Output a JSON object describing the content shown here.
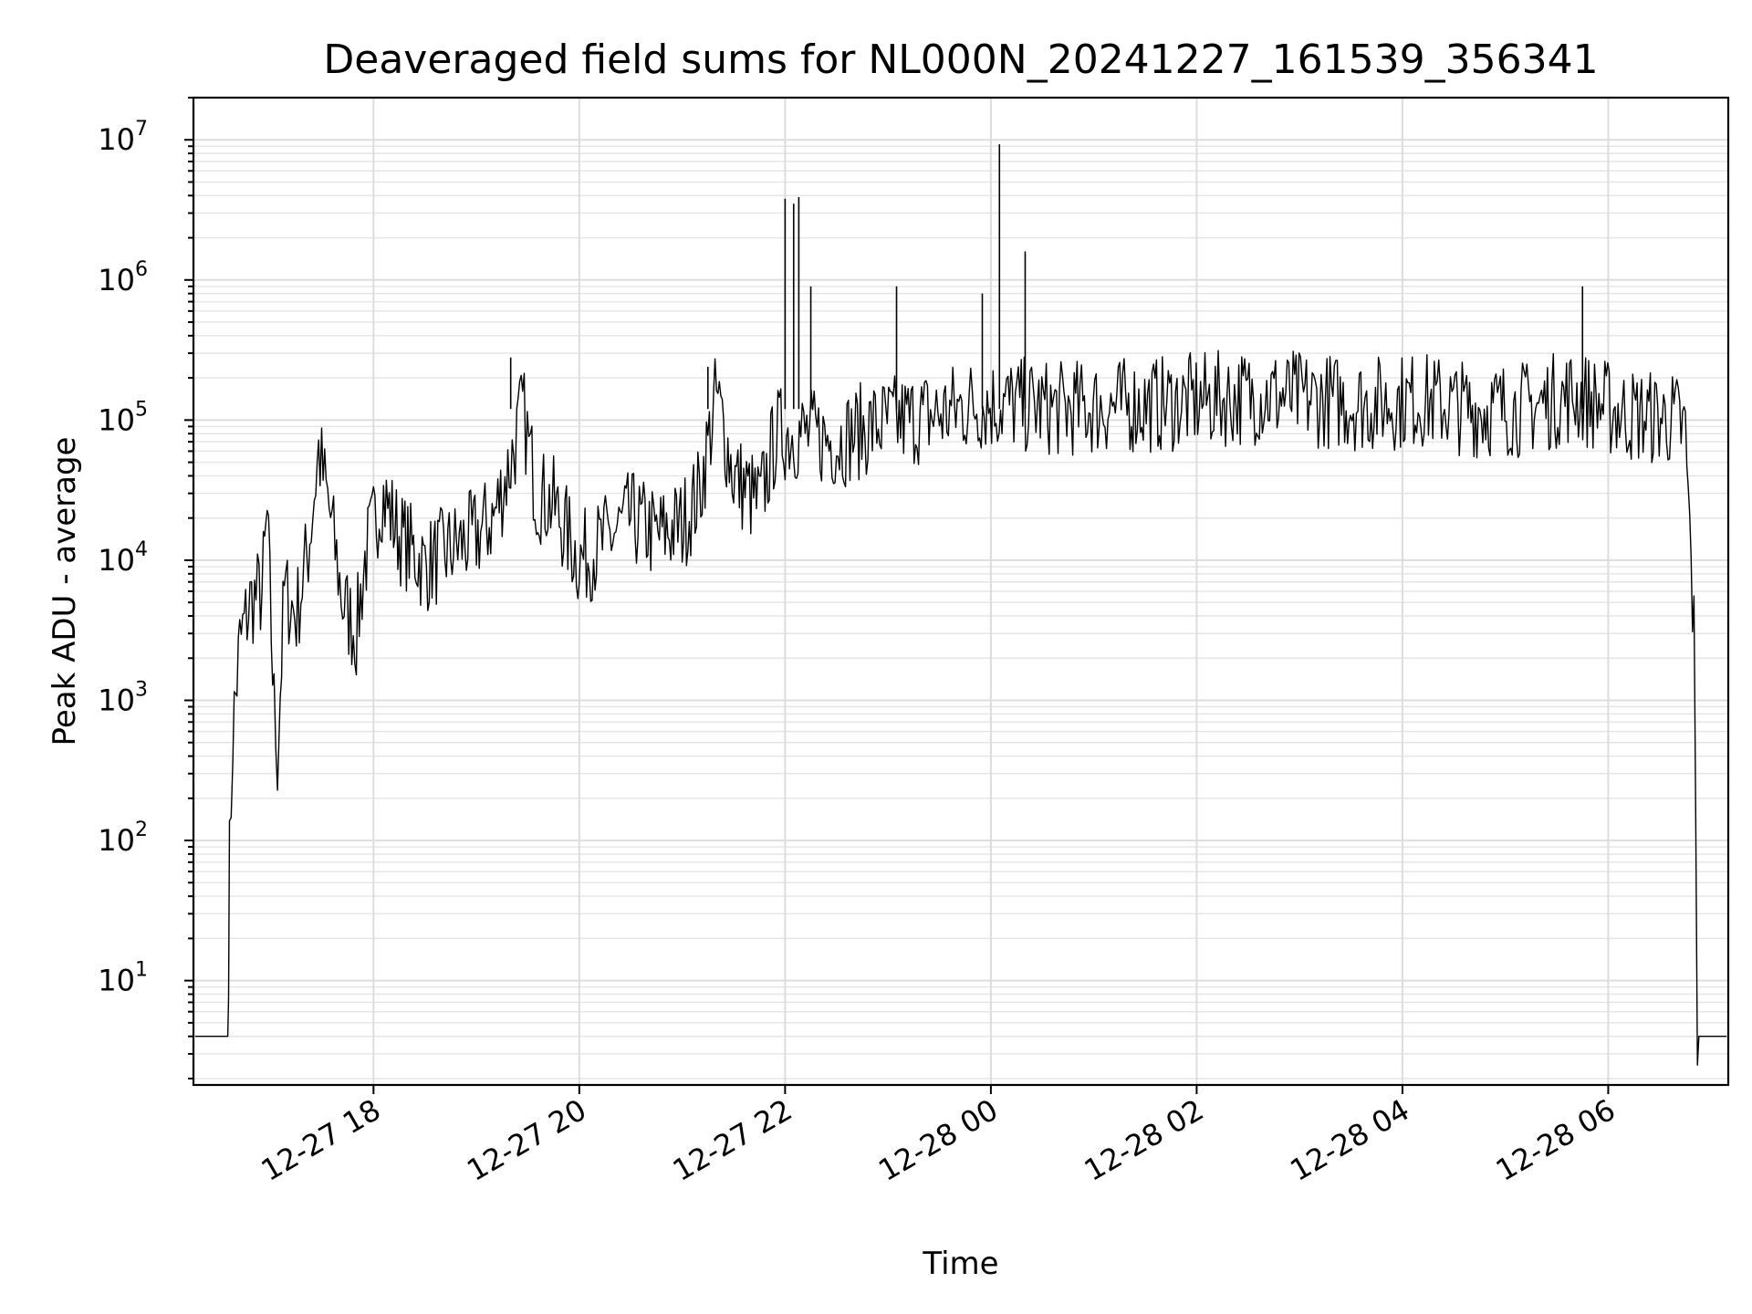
{
  "chart_data": {
    "type": "line",
    "title": "Deaveraged field sums for NL000N_20241227_161539_356341",
    "xlabel": "Time",
    "ylabel": "Peak ADU - average",
    "yscale": "log",
    "ylim": [
      1.8,
      20000000
    ],
    "xlim": [
      "2024-12-27 16:15",
      "2024-12-28 07:10"
    ],
    "grid": true,
    "x_ticks": [
      "12-27 18",
      "12-27 20",
      "12-27 22",
      "12-28 00",
      "12-28 02",
      "12-28 04",
      "12-28 06"
    ],
    "y_ticks": [
      {
        "base": "10",
        "exp": "1"
      },
      {
        "base": "10",
        "exp": "2"
      },
      {
        "base": "10",
        "exp": "3"
      },
      {
        "base": "10",
        "exp": "4"
      },
      {
        "base": "10",
        "exp": "5"
      },
      {
        "base": "10",
        "exp": "6"
      },
      {
        "base": "10",
        "exp": "7"
      }
    ],
    "series": [
      {
        "color": "#000000",
        "points": [
          [
            "2024-12-27 16:16",
            4
          ],
          [
            "2024-12-27 16:35",
            4
          ],
          [
            "2024-12-27 16:36",
            70
          ],
          [
            "2024-12-27 16:38",
            600
          ],
          [
            "2024-12-27 16:42",
            2500
          ],
          [
            "2024-12-27 16:48",
            5000
          ],
          [
            "2024-12-27 16:55",
            6000
          ],
          [
            "2024-12-27 16:58",
            20000
          ],
          [
            "2024-12-27 17:02",
            900
          ],
          [
            "2024-12-27 17:04",
            400
          ],
          [
            "2024-12-27 17:08",
            6000
          ],
          [
            "2024-12-27 17:15",
            4000
          ],
          [
            "2024-12-27 17:22",
            12000
          ],
          [
            "2024-12-27 17:28",
            60000
          ],
          [
            "2024-12-27 17:35",
            20000
          ],
          [
            "2024-12-27 17:42",
            5000
          ],
          [
            "2024-12-27 17:50",
            3000
          ],
          [
            "2024-12-27 17:55",
            10000
          ],
          [
            "2024-12-27 18:05",
            30000
          ],
          [
            "2024-12-27 18:15",
            15000
          ],
          [
            "2024-12-27 18:30",
            9000
          ],
          [
            "2024-12-27 18:45",
            12000
          ],
          [
            "2024-12-27 19:00",
            15000
          ],
          [
            "2024-12-27 19:10",
            20000
          ],
          [
            "2024-12-27 19:20",
            50000
          ],
          [
            "2024-12-27 19:27",
            120000
          ],
          [
            "2024-12-27 19:35",
            30000
          ],
          [
            "2024-12-27 19:45",
            25000
          ],
          [
            "2024-12-27 20:00",
            10000
          ],
          [
            "2024-12-27 20:10",
            12000
          ],
          [
            "2024-12-27 20:30",
            20000
          ],
          [
            "2024-12-27 20:45",
            15000
          ],
          [
            "2024-12-27 21:00",
            18000
          ],
          [
            "2024-12-27 21:10",
            30000
          ],
          [
            "2024-12-27 21:20",
            150000
          ],
          [
            "2024-12-27 21:30",
            40000
          ],
          [
            "2024-12-27 21:45",
            25000
          ],
          [
            "2024-12-27 21:55",
            80000
          ],
          [
            "2024-12-27 22:10",
            80000
          ],
          [
            "2024-12-27 22:30",
            70000
          ],
          [
            "2024-12-27 22:50",
            90000
          ],
          [
            "2024-12-27 23:10",
            100000
          ],
          [
            "2024-12-27 23:30",
            110000
          ],
          [
            "2024-12-27 23:50",
            130000
          ],
          [
            "2024-12-28 00:10",
            130000
          ],
          [
            "2024-12-28 00:40",
            120000
          ],
          [
            "2024-12-28 01:10",
            125000
          ],
          [
            "2024-12-28 01:40",
            130000
          ],
          [
            "2024-12-28 02:10",
            140000
          ],
          [
            "2024-12-28 02:40",
            150000
          ],
          [
            "2024-12-28 03:10",
            140000
          ],
          [
            "2024-12-28 03:40",
            130000
          ],
          [
            "2024-12-28 04:10",
            140000
          ],
          [
            "2024-12-28 04:40",
            120000
          ],
          [
            "2024-12-28 05:10",
            120000
          ],
          [
            "2024-12-28 05:40",
            150000
          ],
          [
            "2024-12-28 06:10",
            110000
          ],
          [
            "2024-12-28 06:40",
            100000
          ],
          [
            "2024-12-28 06:45",
            80000
          ],
          [
            "2024-12-28 06:50",
            3000
          ],
          [
            "2024-12-28 06:52",
            4
          ],
          [
            "2024-12-28 07:09",
            4
          ]
        ]
      }
    ],
    "spikes": [
      [
        "2024-12-27 22:00",
        3800000
      ],
      [
        "2024-12-27 22:05",
        3500000
      ],
      [
        "2024-12-27 22:08",
        3900000
      ],
      [
        "2024-12-27 22:15",
        900000
      ],
      [
        "2024-12-27 23:05",
        900000
      ],
      [
        "2024-12-27 23:55",
        800000
      ],
      [
        "2024-12-28 00:05",
        9300000
      ],
      [
        "2024-12-28 00:20",
        1600000
      ],
      [
        "2024-12-28 05:45",
        900000
      ],
      [
        "2024-12-27 19:20",
        280000
      ],
      [
        "2024-12-27 21:15",
        240000
      ]
    ]
  }
}
